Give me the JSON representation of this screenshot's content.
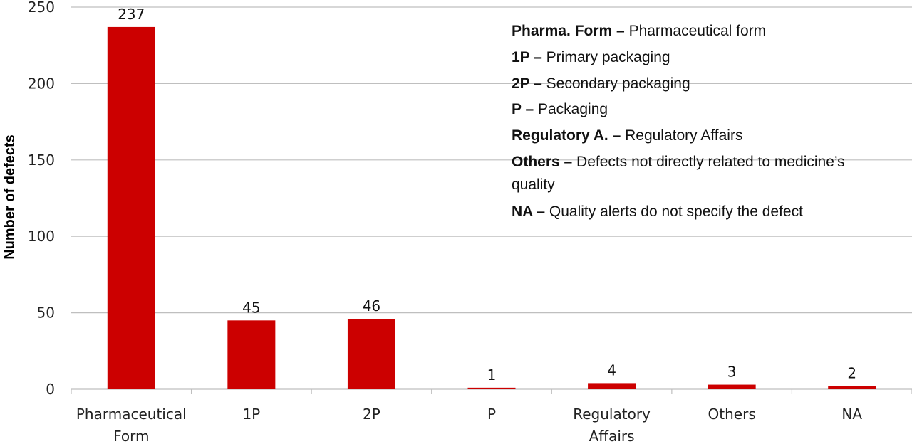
{
  "chart_data": {
    "type": "bar",
    "categories": [
      "Pharmaceutical Form",
      "1P",
      "2P",
      "P",
      "Regulatory Affairs",
      "Others",
      "NA"
    ],
    "values": [
      237,
      45,
      46,
      1,
      4,
      3,
      2
    ],
    "data_labels": [
      "237",
      "45",
      "46",
      "1",
      "4",
      "3",
      "2"
    ],
    "title": "",
    "xlabel": "",
    "ylabel": "Number of defects",
    "ylim": [
      0,
      250
    ],
    "yticks": [
      0,
      50,
      100,
      150,
      200,
      250
    ],
    "grid": true,
    "bar_color": "#cc0000",
    "grid_color": "#bfbfbf"
  },
  "legend_notes": [
    {
      "term": "Pharma. Form",
      "sep": " – ",
      "desc": "Pharmaceutical form"
    },
    {
      "term": "1P",
      "sep": " – ",
      "desc": "Primary packaging"
    },
    {
      "term": "2P",
      "sep": " – ",
      "desc": "Secondary packaging"
    },
    {
      "term": "P",
      "sep": " – ",
      "desc": "Packaging"
    },
    {
      "term": "Regulatory A.",
      "sep": " – ",
      "desc": "Regulatory Affairs"
    },
    {
      "term": "Others",
      "sep": " – ",
      "desc": "Defects not directly related to medicine’s quality"
    },
    {
      "term": "NA",
      "sep": " – ",
      "desc": "Quality alerts do not specify the defect"
    }
  ]
}
